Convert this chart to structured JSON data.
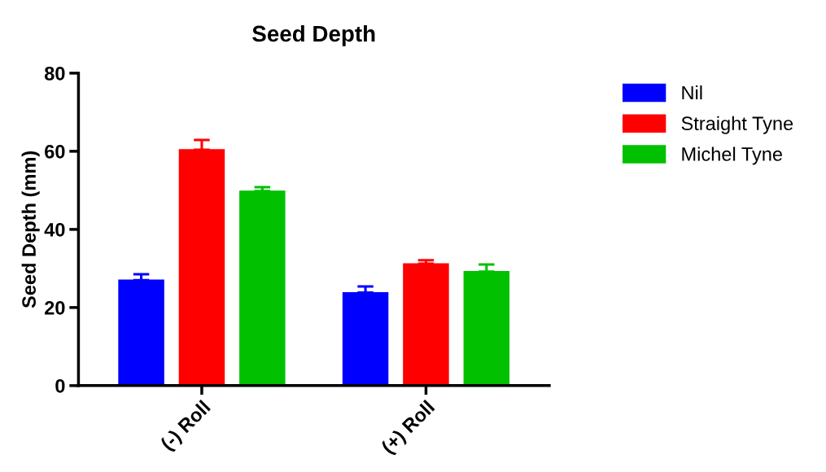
{
  "chart_data": {
    "type": "bar",
    "title": "Seed Depth",
    "ylabel": "Seed Depth (mm)",
    "categories": [
      "(-) Roll",
      "(+) Roll"
    ],
    "series": [
      {
        "name": "Nil",
        "color": "#0000ff",
        "values": [
          27,
          23.8
        ],
        "errors": [
          [
            27,
            28.5
          ],
          [
            23.8,
            25.4
          ]
        ]
      },
      {
        "name": "Straight Tyne",
        "color": "#ff0000",
        "values": [
          60.4,
          31.2
        ],
        "errors": [
          [
            60.4,
            62.9
          ],
          [
            31.2,
            32.1
          ]
        ]
      },
      {
        "name": "Michel Tyne",
        "color": "#00c000",
        "values": [
          49.8,
          29.2
        ],
        "errors": [
          [
            49.8,
            50.8
          ],
          [
            29.2,
            31.0
          ]
        ]
      }
    ],
    "ylim": [
      0,
      80
    ],
    "yticks": [
      0,
      20,
      40,
      60,
      80
    ],
    "grid": false,
    "legend": "top right"
  }
}
